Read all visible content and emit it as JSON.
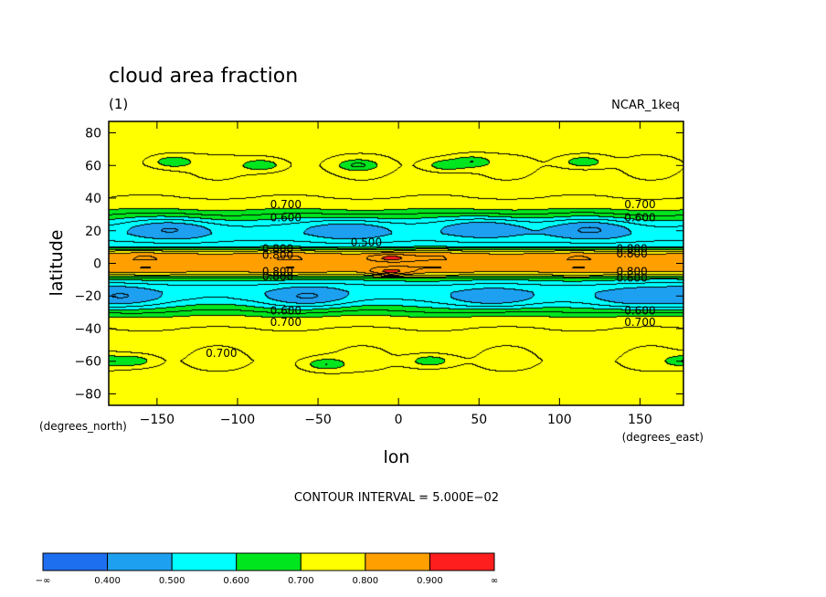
{
  "chart_data": {
    "type": "heatmap",
    "title": "cloud area fraction",
    "subtitle": "(1)",
    "source_label": "NCAR_1keq",
    "xlabel": "lon",
    "ylabel": "latitude",
    "x_units": "(degrees_east)",
    "y_units": "(degrees_north)",
    "xlim": [
      -180,
      177
    ],
    "ylim": [
      -87,
      87
    ],
    "x_ticks": [
      -150,
      -100,
      -50,
      0,
      50,
      100,
      150
    ],
    "y_ticks": [
      80,
      60,
      40,
      20,
      0,
      -20,
      -40,
      -60,
      -80
    ],
    "x_tick_labels": [
      "−150",
      "−100",
      "−50",
      "0",
      "50",
      "100",
      "150"
    ],
    "y_tick_labels": [
      "80",
      "60",
      "40",
      "20",
      "0",
      "−20",
      "−40",
      "−60",
      "−80"
    ],
    "contour_interval_text": "CONTOUR INTERVAL = 5.000E−02",
    "contour_interval": 0.05,
    "grid": false,
    "colorbar": {
      "placement": "bottom",
      "levels": [
        0.4,
        0.5,
        0.6,
        0.7,
        0.8,
        0.9
      ],
      "level_labels": [
        "0.400",
        "0.500",
        "0.600",
        "0.700",
        "0.800",
        "0.900"
      ],
      "end_labels": [
        "−∞",
        "∞"
      ],
      "colors": [
        "#1e6ef0",
        "#1ea0f0",
        "#00ffff",
        "#00e61e",
        "#ffff00",
        "#ffa000",
        "#ff1e1e"
      ]
    },
    "zonal_profile": {
      "lat": [
        -87,
        -80,
        -70,
        -60,
        -50,
        -40,
        -34,
        -30,
        -26,
        -22,
        -18,
        -14,
        -10,
        -7,
        -5,
        -3,
        -1,
        0,
        2,
        4,
        6,
        8,
        10,
        14,
        18,
        22,
        26,
        30,
        34,
        40,
        50,
        60,
        70,
        80,
        87
      ],
      "value": [
        0.78,
        0.77,
        0.76,
        0.75,
        0.76,
        0.75,
        0.72,
        0.66,
        0.6,
        0.55,
        0.53,
        0.55,
        0.62,
        0.76,
        0.82,
        0.84,
        0.83,
        0.82,
        0.84,
        0.84,
        0.8,
        0.72,
        0.6,
        0.55,
        0.53,
        0.55,
        0.6,
        0.66,
        0.72,
        0.75,
        0.76,
        0.75,
        0.76,
        0.77,
        0.78
      ]
    },
    "features": [
      {
        "lon": -140,
        "lat": 20,
        "value": 0.45
      },
      {
        "lon": -30,
        "lat": 20,
        "value": 0.45
      },
      {
        "lon": 55,
        "lat": 21,
        "value": 0.45
      },
      {
        "lon": 120,
        "lat": 20,
        "value": 0.45
      },
      {
        "lon": -175,
        "lat": -20,
        "value": 0.45
      },
      {
        "lon": -55,
        "lat": -20,
        "value": 0.45
      },
      {
        "lon": 60,
        "lat": -21,
        "value": 0.45
      },
      {
        "lon": 150,
        "lat": -21,
        "value": 0.45
      },
      {
        "lon": -5,
        "lat": 3,
        "value": 0.92
      },
      {
        "lon": -5,
        "lat": -5,
        "value": 0.92
      },
      {
        "lon": -140,
        "lat": 62,
        "value": 0.65
      },
      {
        "lon": -85,
        "lat": 60,
        "value": 0.65
      },
      {
        "lon": -25,
        "lat": 60,
        "value": 0.65
      },
      {
        "lon": 30,
        "lat": 60,
        "value": 0.65
      },
      {
        "lon": 45,
        "lat": 62,
        "value": 0.65
      },
      {
        "lon": 115,
        "lat": 62,
        "value": 0.65
      },
      {
        "lon": -165,
        "lat": -60,
        "value": 0.65
      },
      {
        "lon": -45,
        "lat": -62,
        "value": 0.65
      },
      {
        "lon": 20,
        "lat": -60,
        "value": 0.65
      },
      {
        "lon": 178,
        "lat": -60,
        "value": 0.65
      }
    ],
    "contour_labels": [
      {
        "text": "0.700",
        "lon": -70,
        "lat": 36
      },
      {
        "text": "0.600",
        "lon": -70,
        "lat": 28
      },
      {
        "text": "0.700",
        "lon": 150,
        "lat": 36
      },
      {
        "text": "0.600",
        "lon": 150,
        "lat": 28
      },
      {
        "text": "0.500",
        "lon": -20,
        "lat": 13
      },
      {
        "text": "0.800",
        "lon": -75,
        "lat": 9
      },
      {
        "text": "0.800",
        "lon": -75,
        "lat": 5
      },
      {
        "text": "0.800",
        "lon": 145,
        "lat": 9
      },
      {
        "text": "0.800",
        "lon": 145,
        "lat": 6
      },
      {
        "text": "0.800",
        "lon": -75,
        "lat": -5
      },
      {
        "text": "0.800",
        "lon": -75,
        "lat": -8
      },
      {
        "text": "0.800",
        "lon": 145,
        "lat": -5
      },
      {
        "text": "0.600",
        "lon": 145,
        "lat": -9
      },
      {
        "text": "0.600",
        "lon": -70,
        "lat": -29
      },
      {
        "text": "0.700",
        "lon": -70,
        "lat": -36
      },
      {
        "text": "0.600",
        "lon": 150,
        "lat": -29
      },
      {
        "text": "0.700",
        "lon": 150,
        "lat": -36
      },
      {
        "text": "0.700",
        "lon": -110,
        "lat": -55
      }
    ]
  }
}
